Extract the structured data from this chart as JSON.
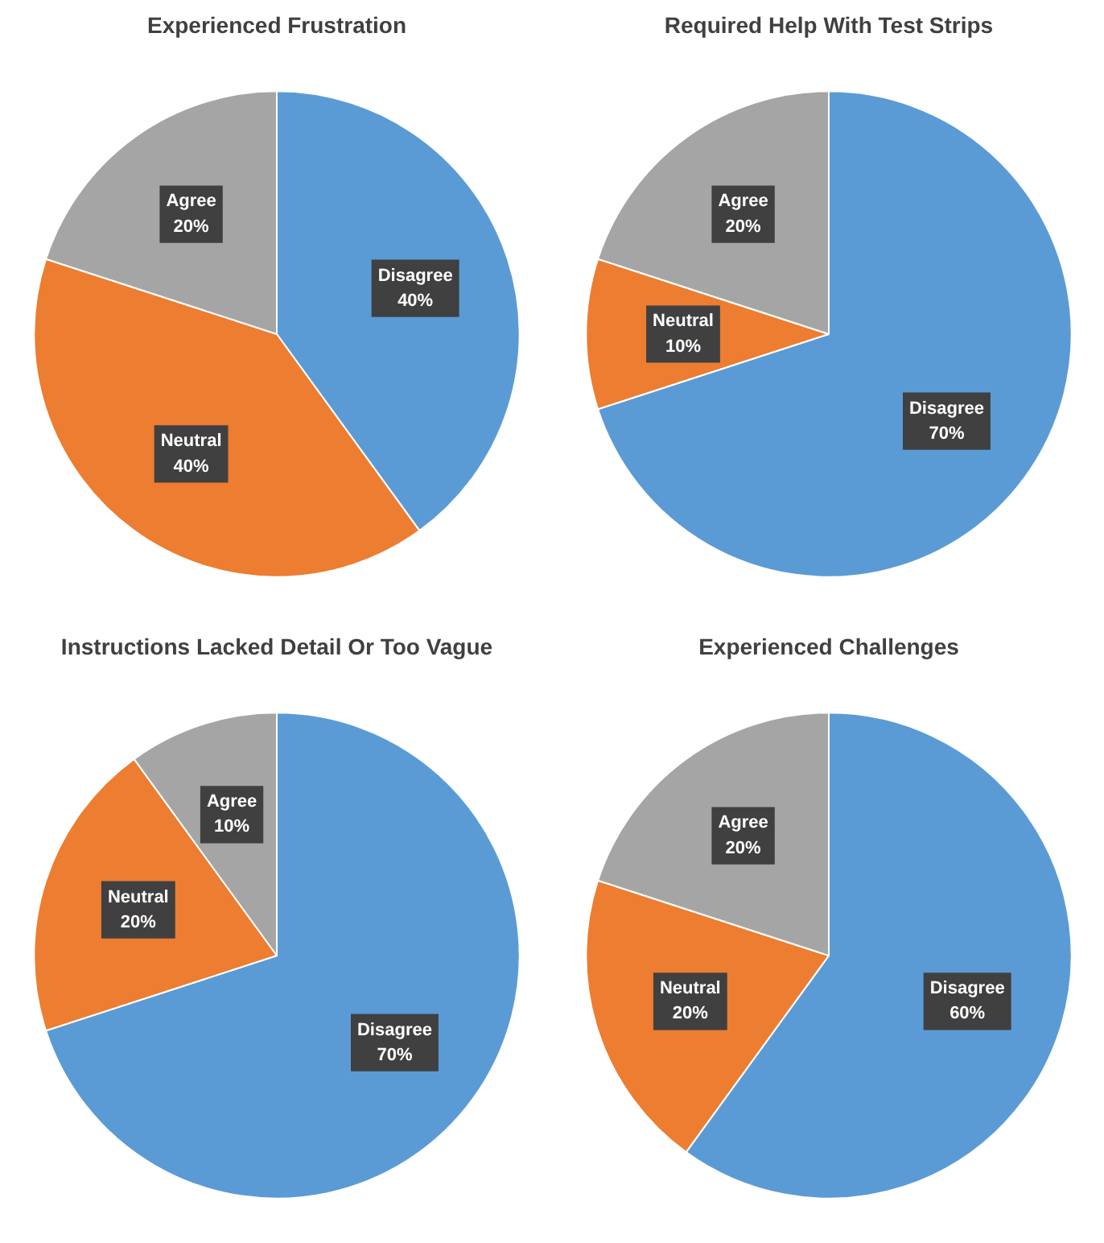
{
  "chart_data": [
    {
      "type": "pie",
      "title": "Experienced Frustration",
      "categories": [
        "Disagree",
        "Neutral",
        "Agree"
      ],
      "values": [
        40,
        40,
        20
      ],
      "colors": [
        "#5b9bd5",
        "#ed7d31",
        "#a5a5a5"
      ],
      "value_labels": [
        "40%",
        "40%",
        "20%"
      ]
    },
    {
      "type": "pie",
      "title": "Required Help With Test Strips",
      "categories": [
        "Disagree",
        "Neutral",
        "Agree"
      ],
      "values": [
        70,
        10,
        20
      ],
      "colors": [
        "#5b9bd5",
        "#ed7d31",
        "#a5a5a5"
      ],
      "value_labels": [
        "70%",
        "10%",
        "20%"
      ]
    },
    {
      "type": "pie",
      "title": "Instructions Lacked Detail Or Too Vague",
      "categories": [
        "Disagree",
        "Neutral",
        "Agree"
      ],
      "values": [
        70,
        20,
        10
      ],
      "colors": [
        "#5b9bd5",
        "#ed7d31",
        "#a5a5a5"
      ],
      "value_labels": [
        "70%",
        "20%",
        "10%"
      ]
    },
    {
      "type": "pie",
      "title": "Experienced Challenges",
      "categories": [
        "Disagree",
        "Neutral",
        "Agree"
      ],
      "values": [
        60,
        20,
        20
      ],
      "colors": [
        "#5b9bd5",
        "#ed7d31",
        "#a5a5a5"
      ],
      "value_labels": [
        "60%",
        "20%",
        "20%"
      ]
    }
  ]
}
